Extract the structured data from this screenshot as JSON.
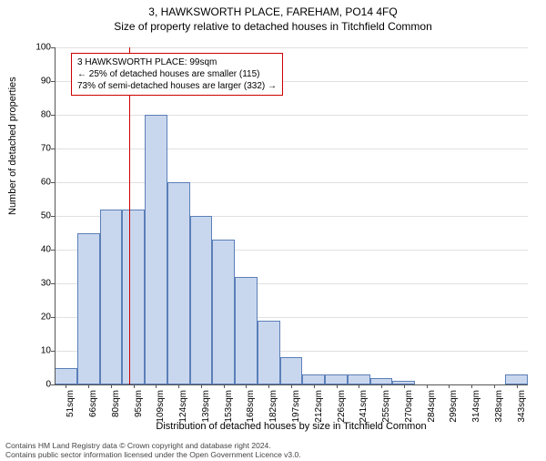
{
  "title": "3, HAWKSWORTH PLACE, FAREHAM, PO14 4FQ",
  "subtitle": "Size of property relative to detached houses in Titchfield Common",
  "ylabel": "Number of detached properties",
  "xlabel": "Distribution of detached houses by size in Titchfield Common",
  "chart": {
    "type": "histogram",
    "ylim": [
      0,
      100
    ],
    "ytick_step": 10,
    "bar_fill": "#c9d7ee",
    "bar_stroke": "#5b7fb8",
    "grid_color": "#e0e0e0",
    "background_color": "#ffffff",
    "categories": [
      "51sqm",
      "66sqm",
      "80sqm",
      "95sqm",
      "109sqm",
      "124sqm",
      "139sqm",
      "153sqm",
      "168sqm",
      "182sqm",
      "197sqm",
      "212sqm",
      "226sqm",
      "241sqm",
      "255sqm",
      "270sqm",
      "284sqm",
      "299sqm",
      "314sqm",
      "328sqm",
      "343sqm"
    ],
    "values": [
      5,
      45,
      52,
      52,
      80,
      60,
      50,
      43,
      32,
      19,
      8,
      3,
      3,
      3,
      2,
      1,
      0,
      0,
      0,
      0,
      3
    ],
    "marker": {
      "position_index": 3.3,
      "color": "#cc0000"
    }
  },
  "info_box": {
    "line1": "3 HAWKSWORTH PLACE: 99sqm",
    "line2": "← 25% of detached houses are smaller (115)",
    "line3": "73% of semi-detached houses are larger (332) →",
    "border_color": "#cc0000"
  },
  "footer": {
    "line1": "Contains HM Land Registry data © Crown copyright and database right 2024.",
    "line2": "Contains public sector information licensed under the Open Government Licence v3.0."
  }
}
